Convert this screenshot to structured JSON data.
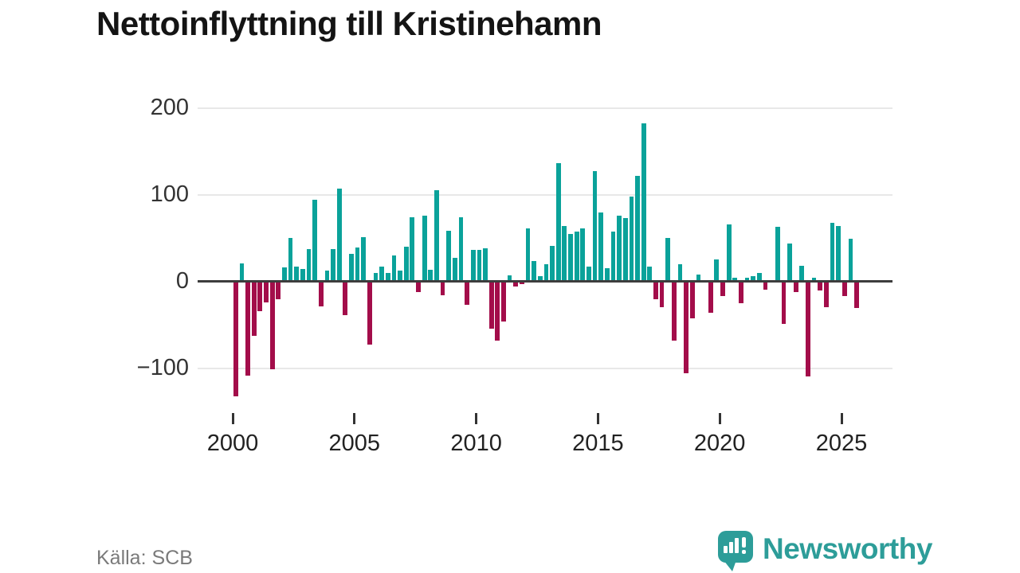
{
  "header": {
    "title": "Nettoinflyttning till Kristinehamn"
  },
  "footer": {
    "source": "Källa: SCB",
    "brand": "Newsworthy",
    "logo_icon": "speech-bubble-bar-chart-icon"
  },
  "colors": {
    "positive": "#0aa29a",
    "negative": "#a30d4a",
    "axis": "#3d3d3d",
    "grid": "#e8e8e8",
    "brand": "#2d9d99",
    "tick": "#333333"
  },
  "chart_data": {
    "type": "bar",
    "title": "Nettoinflyttning till Kristinehamn",
    "xlabel": "",
    "ylabel": "",
    "frequency": "quarterly",
    "start": {
      "year": 2000,
      "quarter": 1
    },
    "end": {
      "year": 2025,
      "quarter": 3
    },
    "values": [
      -133,
      21,
      -109,
      -63,
      -34,
      -24,
      -101,
      -21,
      16,
      50,
      17,
      14,
      37,
      94,
      -29,
      12,
      37,
      107,
      -39,
      32,
      39,
      51,
      -73,
      10,
      17,
      10,
      30,
      12,
      40,
      74,
      -12,
      76,
      13,
      105,
      -16,
      58,
      27,
      74,
      -27,
      36,
      36,
      38,
      -55,
      -68,
      -46,
      7,
      -6,
      -3,
      61,
      23,
      6,
      20,
      41,
      136,
      64,
      55,
      57,
      61,
      17,
      127,
      79,
      15,
      57,
      76,
      73,
      98,
      122,
      182,
      17,
      -21,
      -30,
      50,
      -68,
      20,
      -106,
      -43,
      8,
      0,
      -36,
      25,
      -17,
      66,
      4,
      -25,
      4,
      6,
      10,
      -10,
      0,
      63,
      -49,
      44,
      -12,
      18,
      -110,
      4,
      -11,
      -30,
      67,
      64,
      -17,
      49,
      -31
    ],
    "y_ticks": [
      {
        "label": "200",
        "value": 200
      },
      {
        "label": "100",
        "value": 100
      },
      {
        "label": "0",
        "value": 0
      },
      {
        "label": "−100",
        "value": -100
      }
    ],
    "x_ticks": [
      2000,
      2005,
      2010,
      2015,
      2020,
      2025
    ],
    "ylim": [
      -160,
      215
    ],
    "grid": "horizontal",
    "legend": "none",
    "positive_color": "#0aa29a",
    "negative_color": "#a30d4a"
  }
}
